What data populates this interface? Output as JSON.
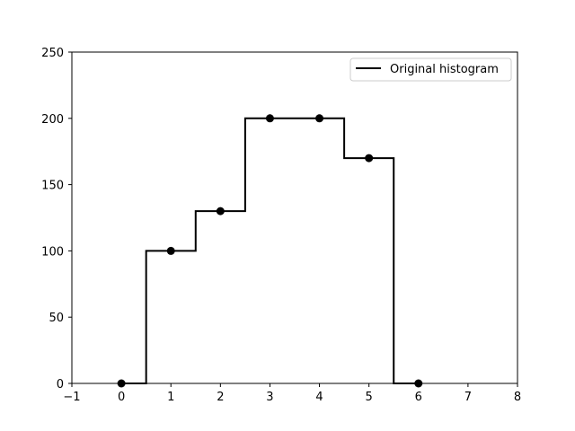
{
  "chart_data": {
    "type": "line",
    "title": "",
    "xlabel": "",
    "ylabel": "",
    "xlim": [
      -1,
      8
    ],
    "ylim": [
      0,
      250
    ],
    "x_ticks": [
      "−1",
      "0",
      "1",
      "2",
      "3",
      "4",
      "5",
      "6",
      "7",
      "8"
    ],
    "y_ticks": [
      "0",
      "50",
      "100",
      "150",
      "200",
      "250"
    ],
    "grid": false,
    "legend_position": "top-right",
    "series": [
      {
        "name": "Original histogram",
        "style": "step-mid",
        "color": "#000000",
        "markers": true,
        "x": [
          0,
          1,
          2,
          3,
          4,
          5,
          6
        ],
        "y": [
          0,
          100,
          130,
          200,
          200,
          170,
          0
        ]
      }
    ]
  }
}
